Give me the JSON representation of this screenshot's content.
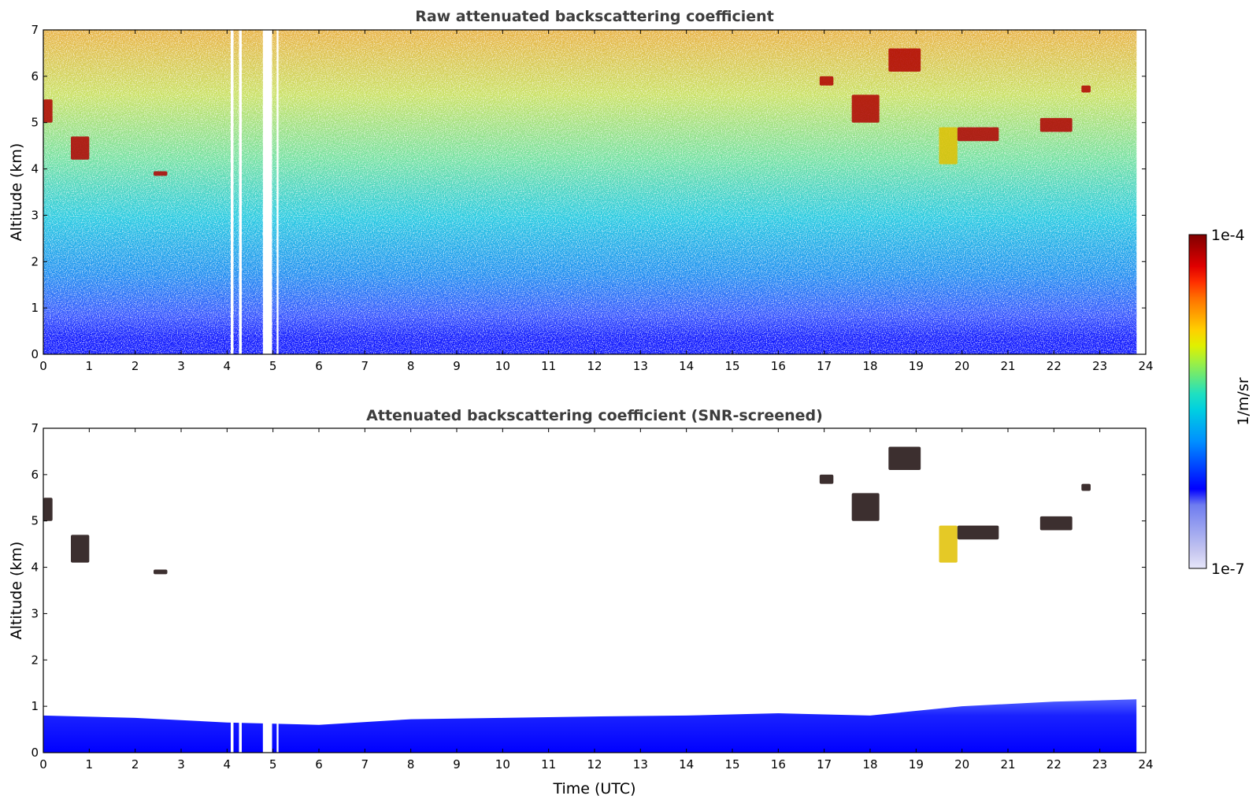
{
  "chart_data": [
    {
      "type": "heatmap",
      "title": "Raw attenuated backscattering coefficient",
      "xlabel": "",
      "ylabel": "Altitude (km)",
      "xlim": [
        0,
        24
      ],
      "ylim": [
        0,
        7
      ],
      "x_ticks": [
        "0",
        "1",
        "2",
        "3",
        "4",
        "5",
        "6",
        "7",
        "8",
        "9",
        "10",
        "11",
        "12",
        "13",
        "14",
        "15",
        "16",
        "17",
        "18",
        "19",
        "20",
        "21",
        "22",
        "23",
        "24"
      ],
      "y_ticks": [
        "0",
        "1",
        "2",
        "3",
        "4",
        "5",
        "6",
        "7"
      ],
      "data_end_time": 23.8,
      "missing_data_gaps": [
        [
          4.08,
          4.14
        ],
        [
          4.26,
          4.32
        ],
        [
          4.78,
          4.98
        ],
        [
          5.08,
          5.12
        ]
      ],
      "features": [
        {
          "time": [
            0.0,
            0.2
          ],
          "altitude": [
            5.0,
            5.5
          ],
          "level": "high"
        },
        {
          "time": [
            0.6,
            1.0
          ],
          "altitude": [
            4.2,
            4.7
          ],
          "level": "high"
        },
        {
          "time": [
            2.4,
            2.7
          ],
          "altitude": [
            3.85,
            3.95
          ],
          "level": "high"
        },
        {
          "time": [
            16.9,
            17.2
          ],
          "altitude": [
            5.8,
            6.0
          ],
          "level": "high"
        },
        {
          "time": [
            17.6,
            18.2
          ],
          "altitude": [
            5.0,
            5.6
          ],
          "level": "high"
        },
        {
          "time": [
            18.4,
            19.1
          ],
          "altitude": [
            6.1,
            6.6
          ],
          "level": "high"
        },
        {
          "time": [
            19.5,
            19.9
          ],
          "altitude": [
            4.1,
            4.9
          ],
          "level": "medium"
        },
        {
          "time": [
            19.9,
            20.8
          ],
          "altitude": [
            4.6,
            4.9
          ],
          "level": "high"
        },
        {
          "time": [
            21.7,
            22.4
          ],
          "altitude": [
            4.8,
            5.1
          ],
          "level": "high"
        },
        {
          "time": [
            22.6,
            22.8
          ],
          "altitude": [
            5.65,
            5.8
          ],
          "level": "high"
        }
      ]
    },
    {
      "type": "heatmap",
      "title": "Attenuated backscattering coefficient (SNR-screened)",
      "xlabel": "Time (UTC)",
      "ylabel": "Altitude (km)",
      "xlim": [
        0,
        24
      ],
      "ylim": [
        0,
        7
      ],
      "x_ticks": [
        "0",
        "1",
        "2",
        "3",
        "4",
        "5",
        "6",
        "7",
        "8",
        "9",
        "10",
        "11",
        "12",
        "13",
        "14",
        "15",
        "16",
        "17",
        "18",
        "19",
        "20",
        "21",
        "22",
        "23",
        "24"
      ],
      "y_ticks": [
        "0",
        "1",
        "2",
        "3",
        "4",
        "5",
        "6",
        "7"
      ],
      "data_end_time": 23.8,
      "missing_data_gaps": [
        [
          4.08,
          4.14
        ],
        [
          4.26,
          4.32
        ],
        [
          4.78,
          4.98
        ],
        [
          5.08,
          5.12
        ]
      ],
      "boundary_layer_top": [
        [
          0,
          0.8
        ],
        [
          2,
          0.75
        ],
        [
          4,
          0.65
        ],
        [
          6,
          0.6
        ],
        [
          8,
          0.72
        ],
        [
          10,
          0.75
        ],
        [
          12,
          0.78
        ],
        [
          14,
          0.8
        ],
        [
          16,
          0.85
        ],
        [
          18,
          0.8
        ],
        [
          20,
          1.0
        ],
        [
          22,
          1.1
        ],
        [
          23.8,
          1.15
        ]
      ],
      "features": [
        {
          "time": [
            0.0,
            0.2
          ],
          "altitude": [
            5.0,
            5.5
          ],
          "level": "high"
        },
        {
          "time": [
            0.6,
            1.0
          ],
          "altitude": [
            4.1,
            4.7
          ],
          "level": "high"
        },
        {
          "time": [
            2.4,
            2.7
          ],
          "altitude": [
            3.85,
            3.95
          ],
          "level": "high"
        },
        {
          "time": [
            16.9,
            17.2
          ],
          "altitude": [
            5.8,
            6.0
          ],
          "level": "high"
        },
        {
          "time": [
            17.6,
            18.2
          ],
          "altitude": [
            5.0,
            5.6
          ],
          "level": "high"
        },
        {
          "time": [
            18.4,
            19.1
          ],
          "altitude": [
            6.1,
            6.6
          ],
          "level": "high"
        },
        {
          "time": [
            19.5,
            19.9
          ],
          "altitude": [
            4.1,
            4.9
          ],
          "level": "medium"
        },
        {
          "time": [
            19.9,
            20.8
          ],
          "altitude": [
            4.6,
            4.9
          ],
          "level": "high"
        },
        {
          "time": [
            21.7,
            22.4
          ],
          "altitude": [
            4.8,
            5.1
          ],
          "level": "high"
        },
        {
          "time": [
            22.6,
            22.8
          ],
          "altitude": [
            5.65,
            5.8
          ],
          "level": "high"
        }
      ]
    }
  ],
  "colorbar": {
    "label": "1/m/sr",
    "min_label": "1e-7",
    "max_label": "1e-4",
    "colors": [
      "#e6e6fa",
      "#c8c8f0",
      "#aab0f0",
      "#8c96f0",
      "#6e7cf0",
      "#0000ff",
      "#0030ff",
      "#0060ff",
      "#0090ff",
      "#00b0f0",
      "#00d0e0",
      "#20e0c0",
      "#60e880",
      "#a0f040",
      "#e0f000",
      "#ffd000",
      "#ffa000",
      "#ff7000",
      "#ff3000",
      "#e00000",
      "#b00000",
      "#800000"
    ]
  }
}
